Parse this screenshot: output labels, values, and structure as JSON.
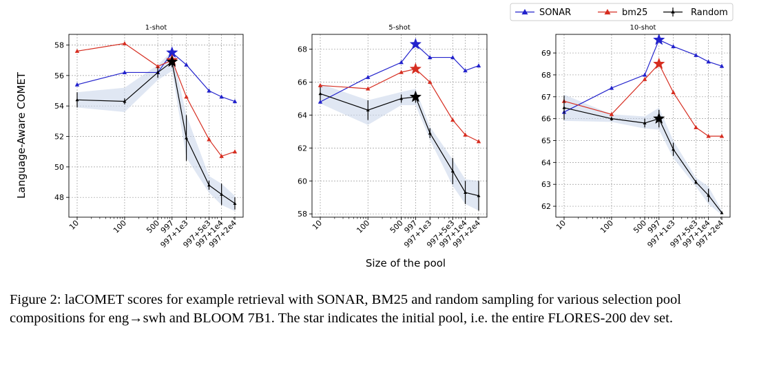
{
  "figure": {
    "ylabel": "Language-Aware COMET",
    "xlabel": "Size of the pool",
    "caption": "Figure 2: laCOMET scores for example retrieval with SONAR, BM25 and random sampling for various selection pool compositions for eng→swh and BLOOM 7B1. The star indicates the initial pool, i.e. the entire FLORES-200 dev set."
  },
  "legend": [
    {
      "name": "SONAR",
      "color": "#2222cc",
      "marker": "triangle"
    },
    {
      "name": "bm25",
      "color": "#d62d20",
      "marker": "triangle"
    },
    {
      "name": "Random",
      "color": "#000000",
      "marker": "plus-errorbar"
    }
  ],
  "chart_data": [
    {
      "type": "line",
      "title": "1-shot",
      "xscale": "log",
      "categories": [
        "10",
        "100",
        "500",
        "997",
        "997+1e3",
        "997+5e3",
        "997+1e4",
        "997+2e4"
      ],
      "x": [
        10,
        100,
        500,
        997,
        1997,
        5997,
        10997,
        20997
      ],
      "ylim": [
        46.7,
        58.7
      ],
      "yticks": [
        48,
        50,
        52,
        54,
        56,
        58
      ],
      "grid": true,
      "star_index": 3,
      "series": [
        {
          "name": "SONAR",
          "values": [
            55.4,
            56.2,
            56.2,
            57.5,
            56.7,
            55.0,
            54.6,
            54.3
          ]
        },
        {
          "name": "bm25",
          "values": [
            57.6,
            58.1,
            56.6,
            57.0,
            54.6,
            51.8,
            50.7,
            51.0
          ]
        },
        {
          "name": "Random",
          "values": [
            54.4,
            54.3,
            56.2,
            56.9,
            51.9,
            48.8,
            48.2,
            47.6
          ],
          "err": [
            0.5,
            0.2,
            0.35,
            0.35,
            1.5,
            0.3,
            0.7,
            0.4
          ],
          "band_low": [
            53.9,
            53.6,
            55.7,
            56.3,
            50.6,
            48.3,
            47.5,
            47.1
          ],
          "band_high": [
            54.9,
            55.2,
            56.7,
            57.6,
            53.4,
            49.4,
            48.9,
            48.1
          ]
        }
      ]
    },
    {
      "type": "line",
      "title": "5-shot",
      "xscale": "log",
      "categories": [
        "10",
        "100",
        "500",
        "997",
        "997+1e3",
        "997+5e3",
        "997+1e4",
        "997+2e4"
      ],
      "x": [
        10,
        100,
        500,
        997,
        1997,
        5997,
        10997,
        20997
      ],
      "ylim": [
        57.8,
        68.9
      ],
      "yticks": [
        58,
        60,
        62,
        64,
        66,
        68
      ],
      "grid": true,
      "star_index": 3,
      "series": [
        {
          "name": "SONAR",
          "values": [
            64.8,
            66.3,
            67.2,
            68.3,
            67.5,
            67.5,
            66.7,
            67.0
          ]
        },
        {
          "name": "bm25",
          "values": [
            65.8,
            65.6,
            66.6,
            66.8,
            66.0,
            63.7,
            62.8,
            62.4
          ]
        },
        {
          "name": "Random",
          "values": [
            65.3,
            64.3,
            65.0,
            65.1,
            62.9,
            60.6,
            59.3,
            59.1
          ],
          "err": [
            0.4,
            0.6,
            0.25,
            0.35,
            0.3,
            0.8,
            0.7,
            0.9
          ],
          "band_low": [
            64.7,
            63.4,
            64.6,
            64.6,
            62.5,
            59.7,
            58.6,
            58.2
          ],
          "band_high": [
            65.9,
            64.9,
            65.4,
            65.6,
            63.3,
            61.3,
            60.1,
            60.0
          ]
        }
      ]
    },
    {
      "type": "line",
      "title": "10-shot",
      "xscale": "log",
      "categories": [
        "10",
        "100",
        "500",
        "997",
        "997+1e3",
        "997+5e3",
        "997+1e4",
        "997+2e4"
      ],
      "x": [
        10,
        100,
        500,
        997,
        1997,
        5997,
        10997,
        20997
      ],
      "ylim": [
        61.5,
        69.85
      ],
      "yticks": [
        62,
        63,
        64,
        65,
        66,
        67,
        68,
        69
      ],
      "grid": true,
      "star_index": 3,
      "series": [
        {
          "name": "SONAR",
          "values": [
            66.3,
            67.4,
            68.0,
            69.6,
            69.3,
            68.9,
            68.6,
            68.4
          ]
        },
        {
          "name": "bm25",
          "values": [
            66.8,
            66.2,
            67.8,
            68.5,
            67.2,
            65.6,
            65.2,
            65.2
          ]
        },
        {
          "name": "Random",
          "values": [
            66.5,
            66.0,
            65.8,
            66.0,
            64.6,
            63.1,
            62.5,
            61.7
          ],
          "err": [
            0.55,
            0.1,
            0.2,
            0.4,
            0.3,
            0.1,
            0.3,
            0.05
          ],
          "band_low": [
            65.9,
            65.85,
            65.55,
            65.5,
            64.2,
            62.9,
            62.1,
            61.6
          ],
          "band_high": [
            67.1,
            66.2,
            66.1,
            66.5,
            65.0,
            63.3,
            62.9,
            61.8
          ]
        }
      ]
    }
  ]
}
